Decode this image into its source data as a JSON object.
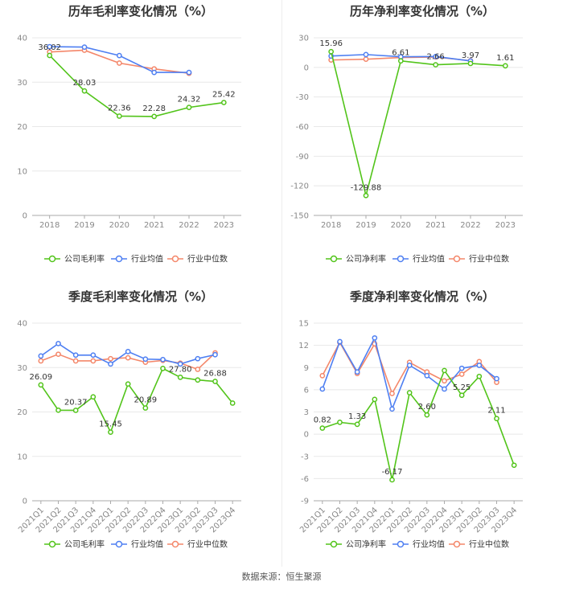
{
  "source": "数据来源：恒生聚源",
  "colors": {
    "company": "#52c41a",
    "industry_avg": "#4e7ff2",
    "industry_median": "#f4876a",
    "grid": "#e8e8e8",
    "axis": "#aaaaaa"
  },
  "chart_data": [
    {
      "type": "line",
      "title": "历年毛利率变化情况（%）",
      "categories": [
        "2018",
        "2019",
        "2020",
        "2021",
        "2022",
        "2023"
      ],
      "ylim": [
        0,
        40
      ],
      "yticks": [
        0,
        10,
        20,
        30,
        40
      ],
      "rotate_labels": false,
      "series": [
        {
          "name": "公司毛利率",
          "color": "#52c41a",
          "values": [
            36.02,
            28.03,
            22.36,
            22.28,
            24.32,
            25.42
          ],
          "labels": [
            "36.02",
            "28.03",
            "22.36",
            "22.28",
            "24.32",
            "25.42"
          ]
        },
        {
          "name": "行业均值",
          "color": "#4e7ff2",
          "values": [
            38.0,
            37.9,
            36.0,
            32.2,
            32.2,
            null
          ]
        },
        {
          "name": "行业中位数",
          "color": "#f4876a",
          "values": [
            36.8,
            37.2,
            34.3,
            33.0,
            32.0,
            null
          ]
        }
      ]
    },
    {
      "type": "line",
      "title": "历年净利率变化情况（%）",
      "categories": [
        "2018",
        "2019",
        "2020",
        "2021",
        "2022",
        "2023"
      ],
      "ylim": [
        -150,
        30
      ],
      "yticks": [
        -150,
        -120,
        -90,
        -60,
        -30,
        0,
        30
      ],
      "rotate_labels": false,
      "series": [
        {
          "name": "公司净利率",
          "color": "#52c41a",
          "values": [
            15.96,
            -129.88,
            6.61,
            2.66,
            3.97,
            1.61
          ],
          "labels": [
            "15.96",
            "-129.88",
            "6.61",
            "2.66",
            "3.97",
            "1.61"
          ]
        },
        {
          "name": "行业均值",
          "color": "#4e7ff2",
          "values": [
            11.5,
            13.0,
            10.8,
            11.0,
            6.5,
            null
          ]
        },
        {
          "name": "行业中位数",
          "color": "#f4876a",
          "values": [
            7.5,
            8.3,
            10.0,
            10.5,
            6.8,
            null
          ]
        }
      ]
    },
    {
      "type": "line",
      "title": "季度毛利率变化情况（%）",
      "categories": [
        "2021Q1",
        "2021Q2",
        "2021Q3",
        "2021Q4",
        "2022Q1",
        "2022Q2",
        "2022Q3",
        "2022Q4",
        "2023Q1",
        "2023Q2",
        "2023Q3",
        "2023Q4"
      ],
      "ylim": [
        0,
        40
      ],
      "yticks": [
        0,
        10,
        20,
        30,
        40
      ],
      "rotate_labels": true,
      "series": [
        {
          "name": "公司毛利率",
          "color": "#52c41a",
          "values": [
            26.09,
            20.4,
            20.37,
            23.4,
            15.45,
            26.3,
            20.89,
            29.8,
            27.8,
            27.2,
            26.88,
            22.0
          ],
          "labels": [
            "26.09",
            null,
            "20.37",
            null,
            "15.45",
            null,
            "20.89",
            null,
            "27.80",
            null,
            "26.88",
            null
          ]
        },
        {
          "name": "行业均值",
          "color": "#4e7ff2",
          "values": [
            32.6,
            35.4,
            32.8,
            32.8,
            30.8,
            33.6,
            31.9,
            31.8,
            30.8,
            32.0,
            32.9,
            null
          ]
        },
        {
          "name": "行业中位数",
          "color": "#f4876a",
          "values": [
            31.5,
            33.0,
            31.5,
            31.5,
            32.0,
            32.2,
            31.2,
            31.6,
            31.0,
            29.6,
            33.3,
            null
          ]
        }
      ]
    },
    {
      "type": "line",
      "title": "季度净利率变化情况（%）",
      "categories": [
        "2021Q1",
        "2021Q2",
        "2021Q3",
        "2021Q4",
        "2022Q1",
        "2022Q2",
        "2022Q3",
        "2022Q4",
        "2023Q1",
        "2023Q2",
        "2023Q3",
        "2023Q4"
      ],
      "ylim": [
        -9,
        15
      ],
      "yticks": [
        -9,
        -6,
        -3,
        0,
        3,
        6,
        9,
        12,
        15
      ],
      "rotate_labels": true,
      "series": [
        {
          "name": "公司净利率",
          "color": "#52c41a",
          "values": [
            0.82,
            1.6,
            1.33,
            4.7,
            -6.17,
            5.6,
            2.6,
            8.6,
            5.25,
            7.8,
            2.11,
            -4.2
          ],
          "labels": [
            "0.82",
            null,
            "1.33",
            null,
            "-6.17",
            null,
            "2.60",
            null,
            "5.25",
            null,
            "2.11",
            null
          ]
        },
        {
          "name": "行业均值",
          "color": "#4e7ff2",
          "values": [
            6.1,
            12.5,
            8.4,
            13.0,
            3.4,
            9.3,
            7.9,
            6.1,
            8.9,
            9.3,
            7.5,
            null
          ]
        },
        {
          "name": "行业中位数",
          "color": "#f4876a",
          "values": [
            7.9,
            12.4,
            8.2,
            12.2,
            5.5,
            9.7,
            8.4,
            7.2,
            8.1,
            9.8,
            7.0,
            null
          ]
        }
      ]
    }
  ]
}
